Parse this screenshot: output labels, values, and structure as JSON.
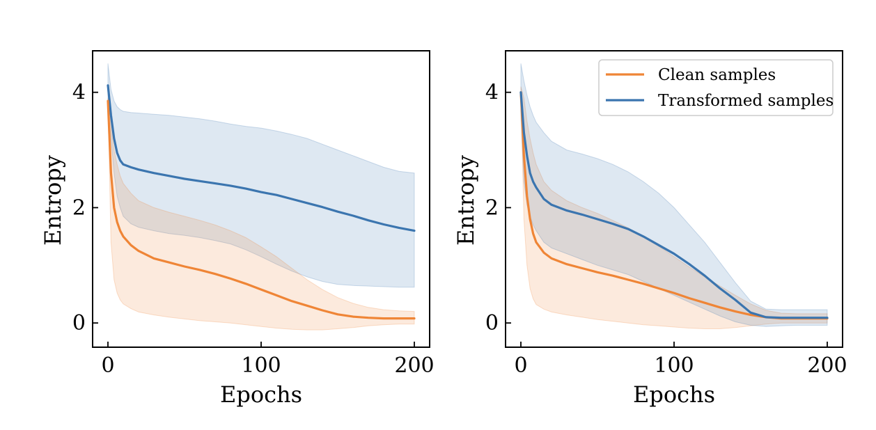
{
  "chart_data": [
    {
      "type": "line",
      "xlabel": "Epochs",
      "ylabel": "Entropy",
      "xlim": [
        -10,
        210
      ],
      "ylim": [
        -0.42,
        4.72
      ],
      "xticks": [
        0,
        100,
        200
      ],
      "yticks": [
        0,
        2,
        4
      ],
      "grid": false,
      "legend": null,
      "x": [
        0,
        2,
        4,
        6,
        8,
        10,
        15,
        20,
        30,
        40,
        50,
        60,
        70,
        80,
        90,
        100,
        110,
        120,
        130,
        140,
        150,
        160,
        170,
        180,
        190,
        200
      ],
      "series": [
        {
          "name": "Transformed samples",
          "color": "#3b75af",
          "values": [
            4.12,
            3.6,
            3.2,
            2.95,
            2.82,
            2.75,
            2.7,
            2.66,
            2.6,
            2.55,
            2.5,
            2.46,
            2.42,
            2.38,
            2.33,
            2.27,
            2.22,
            2.15,
            2.08,
            2.01,
            1.93,
            1.86,
            1.78,
            1.71,
            1.65,
            1.6
          ],
          "band_upper": [
            4.5,
            4.05,
            3.85,
            3.75,
            3.7,
            3.67,
            3.65,
            3.64,
            3.62,
            3.6,
            3.57,
            3.54,
            3.5,
            3.45,
            3.41,
            3.38,
            3.33,
            3.27,
            3.2,
            3.1,
            3.0,
            2.9,
            2.8,
            2.7,
            2.63,
            2.6
          ],
          "band_lower": [
            3.75,
            3.2,
            2.6,
            2.2,
            2.0,
            1.85,
            1.72,
            1.66,
            1.6,
            1.55,
            1.52,
            1.48,
            1.43,
            1.37,
            1.27,
            1.15,
            1.02,
            0.9,
            0.8,
            0.72,
            0.67,
            0.65,
            0.64,
            0.63,
            0.62,
            0.62
          ]
        },
        {
          "name": "Clean samples",
          "color": "#ef8536",
          "values": [
            3.85,
            2.6,
            2.0,
            1.75,
            1.6,
            1.5,
            1.35,
            1.25,
            1.12,
            1.05,
            0.98,
            0.92,
            0.85,
            0.77,
            0.68,
            0.58,
            0.48,
            0.38,
            0.3,
            0.22,
            0.15,
            0.11,
            0.09,
            0.08,
            0.08,
            0.08
          ],
          "band_upper": [
            3.9,
            3.4,
            3.0,
            2.75,
            2.55,
            2.42,
            2.25,
            2.12,
            2.0,
            1.92,
            1.85,
            1.78,
            1.7,
            1.6,
            1.48,
            1.32,
            1.15,
            0.95,
            0.75,
            0.58,
            0.44,
            0.34,
            0.27,
            0.23,
            0.21,
            0.2
          ],
          "band_lower": [
            3.8,
            1.4,
            0.75,
            0.52,
            0.4,
            0.33,
            0.25,
            0.19,
            0.14,
            0.1,
            0.07,
            0.04,
            0.02,
            0.0,
            -0.03,
            -0.06,
            -0.09,
            -0.11,
            -0.12,
            -0.12,
            -0.1,
            -0.08,
            -0.05,
            -0.03,
            -0.02,
            -0.02
          ]
        }
      ]
    },
    {
      "type": "line",
      "xlabel": "Epochs",
      "ylabel": "Entropy",
      "xlim": [
        -10,
        210
      ],
      "ylim": [
        -0.42,
        4.72
      ],
      "xticks": [
        0,
        100,
        200
      ],
      "yticks": [
        0,
        2,
        4
      ],
      "grid": false,
      "legend": "top-right",
      "x": [
        0,
        2,
        4,
        6,
        8,
        10,
        15,
        20,
        30,
        40,
        50,
        60,
        70,
        80,
        90,
        100,
        110,
        120,
        130,
        140,
        150,
        160,
        170,
        180,
        190,
        200
      ],
      "series": [
        {
          "name": "Clean samples",
          "color": "#ef8536",
          "values": [
            4.0,
            2.9,
            2.2,
            1.8,
            1.55,
            1.4,
            1.22,
            1.12,
            1.02,
            0.95,
            0.88,
            0.82,
            0.75,
            0.68,
            0.6,
            0.52,
            0.43,
            0.35,
            0.27,
            0.2,
            0.14,
            0.1,
            0.08,
            0.08,
            0.08,
            0.08
          ],
          "band_upper": [
            4.1,
            3.9,
            3.5,
            3.2,
            2.95,
            2.75,
            2.45,
            2.3,
            2.12,
            2.0,
            1.9,
            1.78,
            1.65,
            1.5,
            1.33,
            1.15,
            0.97,
            0.8,
            0.64,
            0.48,
            0.33,
            0.22,
            0.17,
            0.16,
            0.16,
            0.16
          ],
          "band_lower": [
            3.9,
            1.8,
            1.0,
            0.6,
            0.42,
            0.32,
            0.24,
            0.19,
            0.14,
            0.1,
            0.06,
            0.03,
            0.0,
            -0.03,
            -0.05,
            -0.07,
            -0.09,
            -0.1,
            -0.1,
            -0.08,
            -0.05,
            -0.02,
            0.0,
            0.0,
            0.0,
            0.0
          ]
        },
        {
          "name": "Transformed samples",
          "color": "#3b75af",
          "values": [
            4.0,
            3.3,
            2.9,
            2.6,
            2.45,
            2.35,
            2.15,
            2.05,
            1.95,
            1.88,
            1.8,
            1.72,
            1.63,
            1.5,
            1.35,
            1.2,
            1.02,
            0.82,
            0.6,
            0.4,
            0.18,
            0.1,
            0.09,
            0.09,
            0.09,
            0.09
          ],
          "band_upper": [
            4.5,
            4.2,
            3.95,
            3.75,
            3.6,
            3.48,
            3.3,
            3.15,
            3.0,
            2.93,
            2.85,
            2.75,
            2.62,
            2.45,
            2.25,
            2.0,
            1.7,
            1.4,
            1.05,
            0.7,
            0.38,
            0.24,
            0.23,
            0.23,
            0.23,
            0.23
          ],
          "band_lower": [
            3.6,
            2.45,
            2.05,
            1.85,
            1.7,
            1.6,
            1.4,
            1.3,
            1.2,
            1.1,
            1.0,
            0.92,
            0.84,
            0.72,
            0.6,
            0.48,
            0.36,
            0.24,
            0.12,
            0.02,
            -0.04,
            -0.06,
            -0.05,
            -0.04,
            -0.04,
            -0.04
          ]
        }
      ]
    }
  ]
}
